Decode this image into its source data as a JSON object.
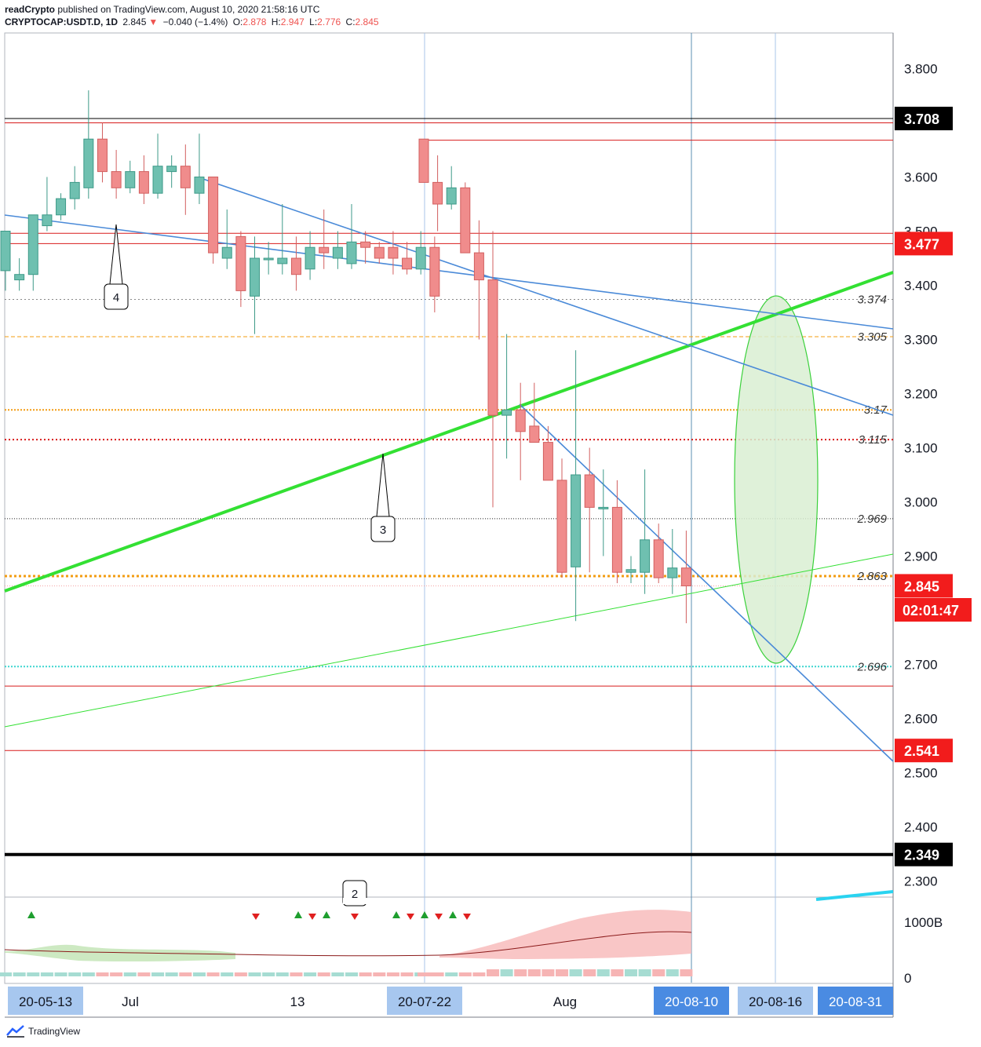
{
  "header": {
    "author": "readCrypto",
    "published_text": "published on TradingView.com, August 10, 2020 21:58:16 UTC",
    "symbol": "CRYPTOCAP:USDT.D, 1D",
    "last": "2.845",
    "change_arrow": "▼",
    "change": "−0.040 (−1.4%)",
    "open_label": "O:",
    "open": "2.878",
    "high_label": "H:",
    "high": "2.947",
    "low_label": "L:",
    "low": "2.776",
    "close_label": "C:",
    "close": "2.845"
  },
  "footer": {
    "brand": "TradingView",
    "logo_icon": "tradingview-logo-icon"
  },
  "colors": {
    "up": "#6fc0b0",
    "down": "#f08c8c",
    "green_line": "#33e033",
    "blue_line": "#4a8ad8",
    "red_level": "#d81b1b",
    "orange_dotted": "#f39c12",
    "ellipse_fill": "#d9eed2",
    "ellipse_stroke": "#3bd13b"
  },
  "chart_data": {
    "type": "candlestick",
    "price_axis": {
      "min": 2.25,
      "max": 3.86,
      "ticks": [
        "3.800",
        "3.600",
        "3.500",
        "3.400",
        "3.300",
        "3.200",
        "3.100",
        "3.000",
        "2.900",
        "2.700",
        "2.600",
        "2.500",
        "2.400",
        "2.300"
      ]
    },
    "price_badges": [
      {
        "value": 3.708,
        "label": "3.708",
        "style": "black"
      },
      {
        "value": 3.477,
        "label": "3.477",
        "style": "red"
      },
      {
        "value": 2.845,
        "label": "2.845",
        "style": "red"
      },
      {
        "value": 2.541,
        "label": "2.541",
        "style": "red"
      },
      {
        "value": 2.349,
        "label": "2.349",
        "style": "black"
      }
    ],
    "countdown": "02:01:47",
    "time_axis": [
      {
        "label": "20-05-13",
        "highlight": "light"
      },
      {
        "label": "Jul",
        "highlight": "none"
      },
      {
        "label": "13",
        "highlight": "none"
      },
      {
        "label": "20-07-22",
        "highlight": "light"
      },
      {
        "label": "Aug",
        "highlight": "none"
      },
      {
        "label": "20-08-10",
        "highlight": "dark"
      },
      {
        "label": "20-08-16",
        "highlight": "light"
      },
      {
        "label": "20-08-31",
        "highlight": "dark"
      }
    ],
    "level_labels": [
      {
        "value": 3.374,
        "label": "3.374",
        "style": "gray-dotted"
      },
      {
        "value": 3.305,
        "label": "3.305",
        "style": "orange-dashed"
      },
      {
        "value": 3.17,
        "label": "3.17",
        "style": "orange-dotted"
      },
      {
        "value": 3.115,
        "label": "3.115",
        "style": "red-dotted"
      },
      {
        "value": 2.969,
        "label": "2.969",
        "style": "black-dotted"
      },
      {
        "value": 2.863,
        "label": "2.863",
        "style": "orange-thick-dotted"
      },
      {
        "value": 2.696,
        "label": "2.696",
        "style": "cyan-dotted"
      }
    ],
    "red_levels": [
      3.7,
      3.496,
      3.477,
      2.66,
      2.541
    ],
    "black_levels": [
      3.708,
      2.349
    ],
    "callouts": [
      "4",
      "3",
      "2"
    ],
    "candles": [
      {
        "o": 3.427,
        "h": 3.5,
        "l": 3.39,
        "c": 3.5
      },
      {
        "o": 3.41,
        "h": 3.45,
        "l": 3.39,
        "c": 3.42
      },
      {
        "o": 3.42,
        "h": 3.53,
        "l": 3.39,
        "c": 3.53
      },
      {
        "o": 3.51,
        "h": 3.6,
        "l": 3.5,
        "c": 3.53
      },
      {
        "o": 3.53,
        "h": 3.57,
        "l": 3.52,
        "c": 3.56
      },
      {
        "o": 3.56,
        "h": 3.62,
        "l": 3.54,
        "c": 3.59
      },
      {
        "o": 3.58,
        "h": 3.76,
        "l": 3.56,
        "c": 3.67
      },
      {
        "o": 3.67,
        "h": 3.7,
        "l": 3.59,
        "c": 3.61
      },
      {
        "o": 3.61,
        "h": 3.65,
        "l": 3.56,
        "c": 3.58
      },
      {
        "o": 3.58,
        "h": 3.63,
        "l": 3.57,
        "c": 3.61
      },
      {
        "o": 3.61,
        "h": 3.64,
        "l": 3.55,
        "c": 3.57
      },
      {
        "o": 3.57,
        "h": 3.68,
        "l": 3.56,
        "c": 3.62
      },
      {
        "o": 3.61,
        "h": 3.64,
        "l": 3.58,
        "c": 3.62
      },
      {
        "o": 3.62,
        "h": 3.66,
        "l": 3.53,
        "c": 3.58
      },
      {
        "o": 3.57,
        "h": 3.68,
        "l": 3.55,
        "c": 3.6
      },
      {
        "o": 3.6,
        "h": 3.6,
        "l": 3.44,
        "c": 3.46
      },
      {
        "o": 3.45,
        "h": 3.54,
        "l": 3.43,
        "c": 3.47
      },
      {
        "o": 3.49,
        "h": 3.5,
        "l": 3.36,
        "c": 3.39
      },
      {
        "o": 3.38,
        "h": 3.49,
        "l": 3.31,
        "c": 3.45
      },
      {
        "o": 3.45,
        "h": 3.48,
        "l": 3.42,
        "c": 3.45
      },
      {
        "o": 3.44,
        "h": 3.55,
        "l": 3.42,
        "c": 3.45
      },
      {
        "o": 3.45,
        "h": 3.49,
        "l": 3.39,
        "c": 3.42
      },
      {
        "o": 3.43,
        "h": 3.5,
        "l": 3.41,
        "c": 3.47
      },
      {
        "o": 3.47,
        "h": 3.54,
        "l": 3.43,
        "c": 3.46
      },
      {
        "o": 3.45,
        "h": 3.5,
        "l": 3.43,
        "c": 3.47
      },
      {
        "o": 3.44,
        "h": 3.55,
        "l": 3.43,
        "c": 3.48
      },
      {
        "o": 3.48,
        "h": 3.5,
        "l": 3.44,
        "c": 3.47
      },
      {
        "o": 3.47,
        "h": 3.48,
        "l": 3.44,
        "c": 3.45
      },
      {
        "o": 3.47,
        "h": 3.5,
        "l": 3.42,
        "c": 3.45
      },
      {
        "o": 3.45,
        "h": 3.48,
        "l": 3.42,
        "c": 3.43
      },
      {
        "o": 3.43,
        "h": 3.5,
        "l": 3.42,
        "c": 3.47
      },
      {
        "o": 3.47,
        "h": 3.49,
        "l": 3.35,
        "c": 3.38
      },
      {
        "o": 3.67,
        "h": 3.67,
        "l": 3.59,
        "c": 3.59
      },
      {
        "o": 3.59,
        "h": 3.64,
        "l": 3.5,
        "c": 3.55
      },
      {
        "o": 3.55,
        "h": 3.62,
        "l": 3.54,
        "c": 3.58
      },
      {
        "o": 3.58,
        "h": 3.59,
        "l": 3.46,
        "c": 3.46
      },
      {
        "o": 3.46,
        "h": 3.52,
        "l": 3.3,
        "c": 3.41
      },
      {
        "o": 3.41,
        "h": 3.5,
        "l": 2.99,
        "c": 3.16
      },
      {
        "o": 3.16,
        "h": 3.31,
        "l": 3.08,
        "c": 3.17
      },
      {
        "o": 3.17,
        "h": 3.22,
        "l": 3.04,
        "c": 3.13
      },
      {
        "o": 3.14,
        "h": 3.22,
        "l": 3.11,
        "c": 3.11
      },
      {
        "o": 3.11,
        "h": 3.14,
        "l": 3.04,
        "c": 3.04
      },
      {
        "o": 3.04,
        "h": 3.08,
        "l": 2.86,
        "c": 2.87
      },
      {
        "o": 2.88,
        "h": 3.28,
        "l": 2.78,
        "c": 3.05
      },
      {
        "o": 3.05,
        "h": 3.1,
        "l": 2.87,
        "c": 2.99
      },
      {
        "o": 2.99,
        "h": 3.06,
        "l": 2.9,
        "c": 2.99
      },
      {
        "o": 2.99,
        "h": 3.04,
        "l": 2.85,
        "c": 2.87
      },
      {
        "o": 2.87,
        "h": 2.9,
        "l": 2.85,
        "c": 2.875
      },
      {
        "o": 2.87,
        "h": 3.06,
        "l": 2.83,
        "c": 2.93
      },
      {
        "o": 2.93,
        "h": 2.96,
        "l": 2.85,
        "c": 2.86
      },
      {
        "o": 2.86,
        "h": 2.95,
        "l": 2.83,
        "c": 2.878
      },
      {
        "o": 2.878,
        "h": 2.947,
        "l": 2.776,
        "c": 2.845
      }
    ],
    "indicator": {
      "axis_labels": [
        "1000B",
        "0"
      ],
      "signal_markers": [
        {
          "bar": 2,
          "dir": "up"
        },
        {
          "bar": 18,
          "dir": "down"
        },
        {
          "bar": 21,
          "dir": "up"
        },
        {
          "bar": 22,
          "dir": "down"
        },
        {
          "bar": 23,
          "dir": "up"
        },
        {
          "bar": 25,
          "dir": "down"
        },
        {
          "bar": 28,
          "dir": "up"
        },
        {
          "bar": 29,
          "dir": "down"
        },
        {
          "bar": 30,
          "dir": "up"
        },
        {
          "bar": 31,
          "dir": "down"
        },
        {
          "bar": 32,
          "dir": "up"
        },
        {
          "bar": 33,
          "dir": "down"
        }
      ]
    }
  }
}
